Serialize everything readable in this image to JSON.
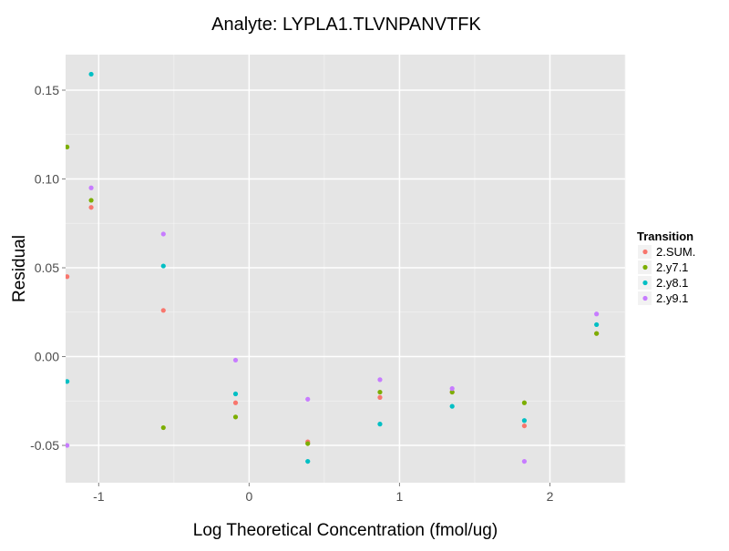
{
  "chart_data": {
    "type": "scatter",
    "title": "Analyte: LYPLA1.TLVNPANVTFK",
    "xlabel": "Log Theoretical Concentration (fmol/ug)",
    "ylabel": "Residual",
    "xlim": [
      -1.22,
      2.5
    ],
    "ylim": [
      -0.071,
      0.17
    ],
    "xticks": [
      -1,
      0,
      1,
      2
    ],
    "xtick_labels": [
      "-1",
      "0",
      "1",
      "2"
    ],
    "yticks": [
      -0.05,
      0.0,
      0.05,
      0.1,
      0.15
    ],
    "ytick_labels": [
      "-0.05",
      "0.00",
      "0.05",
      "0.10",
      "0.15"
    ],
    "grid": true,
    "legend": {
      "title": "Transition",
      "position": "right"
    },
    "series": [
      {
        "name": "2.SUM.",
        "color": "#F8766D",
        "x": [
          -1.21,
          -1.05,
          -0.57,
          -0.09,
          0.39,
          0.87,
          1.35,
          1.83,
          2.31
        ],
        "y": [
          0.045,
          0.084,
          0.026,
          -0.026,
          -0.048,
          -0.023,
          -0.02,
          -0.039,
          0.013
        ]
      },
      {
        "name": "2.y7.1",
        "color": "#7CAE00",
        "x": [
          -1.21,
          -1.05,
          -0.57,
          -0.09,
          0.39,
          0.87,
          1.35,
          1.83,
          2.31
        ],
        "y": [
          0.118,
          0.088,
          -0.04,
          -0.034,
          -0.049,
          -0.02,
          -0.02,
          -0.026,
          0.013
        ]
      },
      {
        "name": "2.y8.1",
        "color": "#00BFC4",
        "x": [
          -1.21,
          -1.05,
          -0.57,
          -0.09,
          0.39,
          0.87,
          1.35,
          1.83,
          2.31
        ],
        "y": [
          -0.014,
          0.159,
          0.051,
          -0.021,
          -0.059,
          -0.038,
          -0.028,
          -0.036,
          0.018
        ]
      },
      {
        "name": "2.y9.1",
        "color": "#C77CFF",
        "x": [
          -1.21,
          -1.05,
          -0.57,
          -0.09,
          0.39,
          0.87,
          1.35,
          1.83,
          2.31
        ],
        "y": [
          -0.05,
          0.095,
          0.069,
          -0.002,
          -0.024,
          -0.013,
          -0.018,
          -0.059,
          0.024
        ]
      }
    ]
  }
}
